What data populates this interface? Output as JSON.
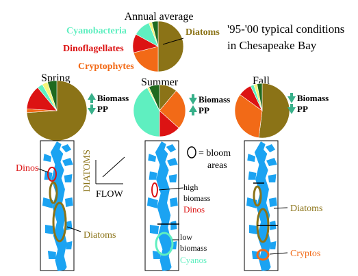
{
  "colors": {
    "diatoms": "#8B7317",
    "cryptophytes": "#F26A17",
    "dinoflagellates": "#DC1313",
    "cyanobacteria": "#5FEFC0",
    "other_yellow": "#F4F47A",
    "other_green": "#1F6A1F",
    "water": "#1BA3F2",
    "arrow_green": "#38B08A"
  },
  "annual": {
    "title": "Annual average",
    "labels": {
      "cyanobacteria": "Cyanobacteria",
      "dinoflagellates": "Dinoflagellates",
      "cryptophytes": "Cryptophytes",
      "diatoms": "Diatoms"
    },
    "headline_line1": "'95-'00 typical conditions",
    "headline_line2": "in Chesapeake Bay"
  },
  "seasons": [
    {
      "title": "Spring",
      "biomass_label": "Biomass",
      "pp_label": "PP",
      "biomass_dir": "up",
      "pp_dir": "down"
    },
    {
      "title": "Summer",
      "biomass_label": "Biomass",
      "pp_label": "PP",
      "biomass_dir": "down",
      "pp_dir": "up"
    },
    {
      "title": "Fall",
      "biomass_label": "Biomass",
      "pp_label": "PP",
      "biomass_dir": "down",
      "pp_dir": "down"
    }
  ],
  "chart_data": [
    {
      "type": "pie",
      "title": "Annual average",
      "categories": [
        "Diatoms",
        "Cryptophytes",
        "Dinoflagellates",
        "Cyanobacteria",
        "Other (yellow)",
        "Other (green)"
      ],
      "values": [
        50,
        21,
        12,
        11,
        2,
        4
      ]
    },
    {
      "type": "pie",
      "title": "Spring",
      "categories": [
        "Diatoms",
        "Cryptophytes",
        "Dinoflagellates",
        "Cyanobacteria",
        "Other (yellow)",
        "Other (green)"
      ],
      "values": [
        74,
        2,
        13,
        3,
        3,
        5
      ]
    },
    {
      "type": "pie",
      "title": "Summer",
      "categories": [
        "Diatoms",
        "Cryptophytes",
        "Dinoflagellates",
        "Cyanobacteria",
        "Other (yellow)",
        "Other (green)"
      ],
      "values": [
        10,
        23,
        12,
        38,
        1,
        6
      ]
    },
    {
      "type": "pie",
      "title": "Fall",
      "categories": [
        "Diatoms",
        "Cryptophytes",
        "Dinoflagellates",
        "Cyanobacteria",
        "Other (yellow)",
        "Other (green)"
      ],
      "values": [
        52,
        33,
        8,
        2,
        2,
        3
      ]
    }
  ],
  "inset": {
    "y_label": "DIATOMS",
    "x_label": "FLOW"
  },
  "legend": {
    "bloom_text_line1": "= bloom",
    "bloom_text_line2": "areas"
  },
  "maps": {
    "spring": {
      "dinos": "Dinos",
      "diatoms": "Diatoms"
    },
    "summer": {
      "high_line1": "high",
      "high_line2": "biomass",
      "dinos": "Dinos",
      "low_line1": "low",
      "low_line2": "biomass",
      "cyanos": "Cyanos"
    },
    "fall": {
      "diatoms": "Diatoms",
      "cryptos": "Cryptos"
    }
  }
}
